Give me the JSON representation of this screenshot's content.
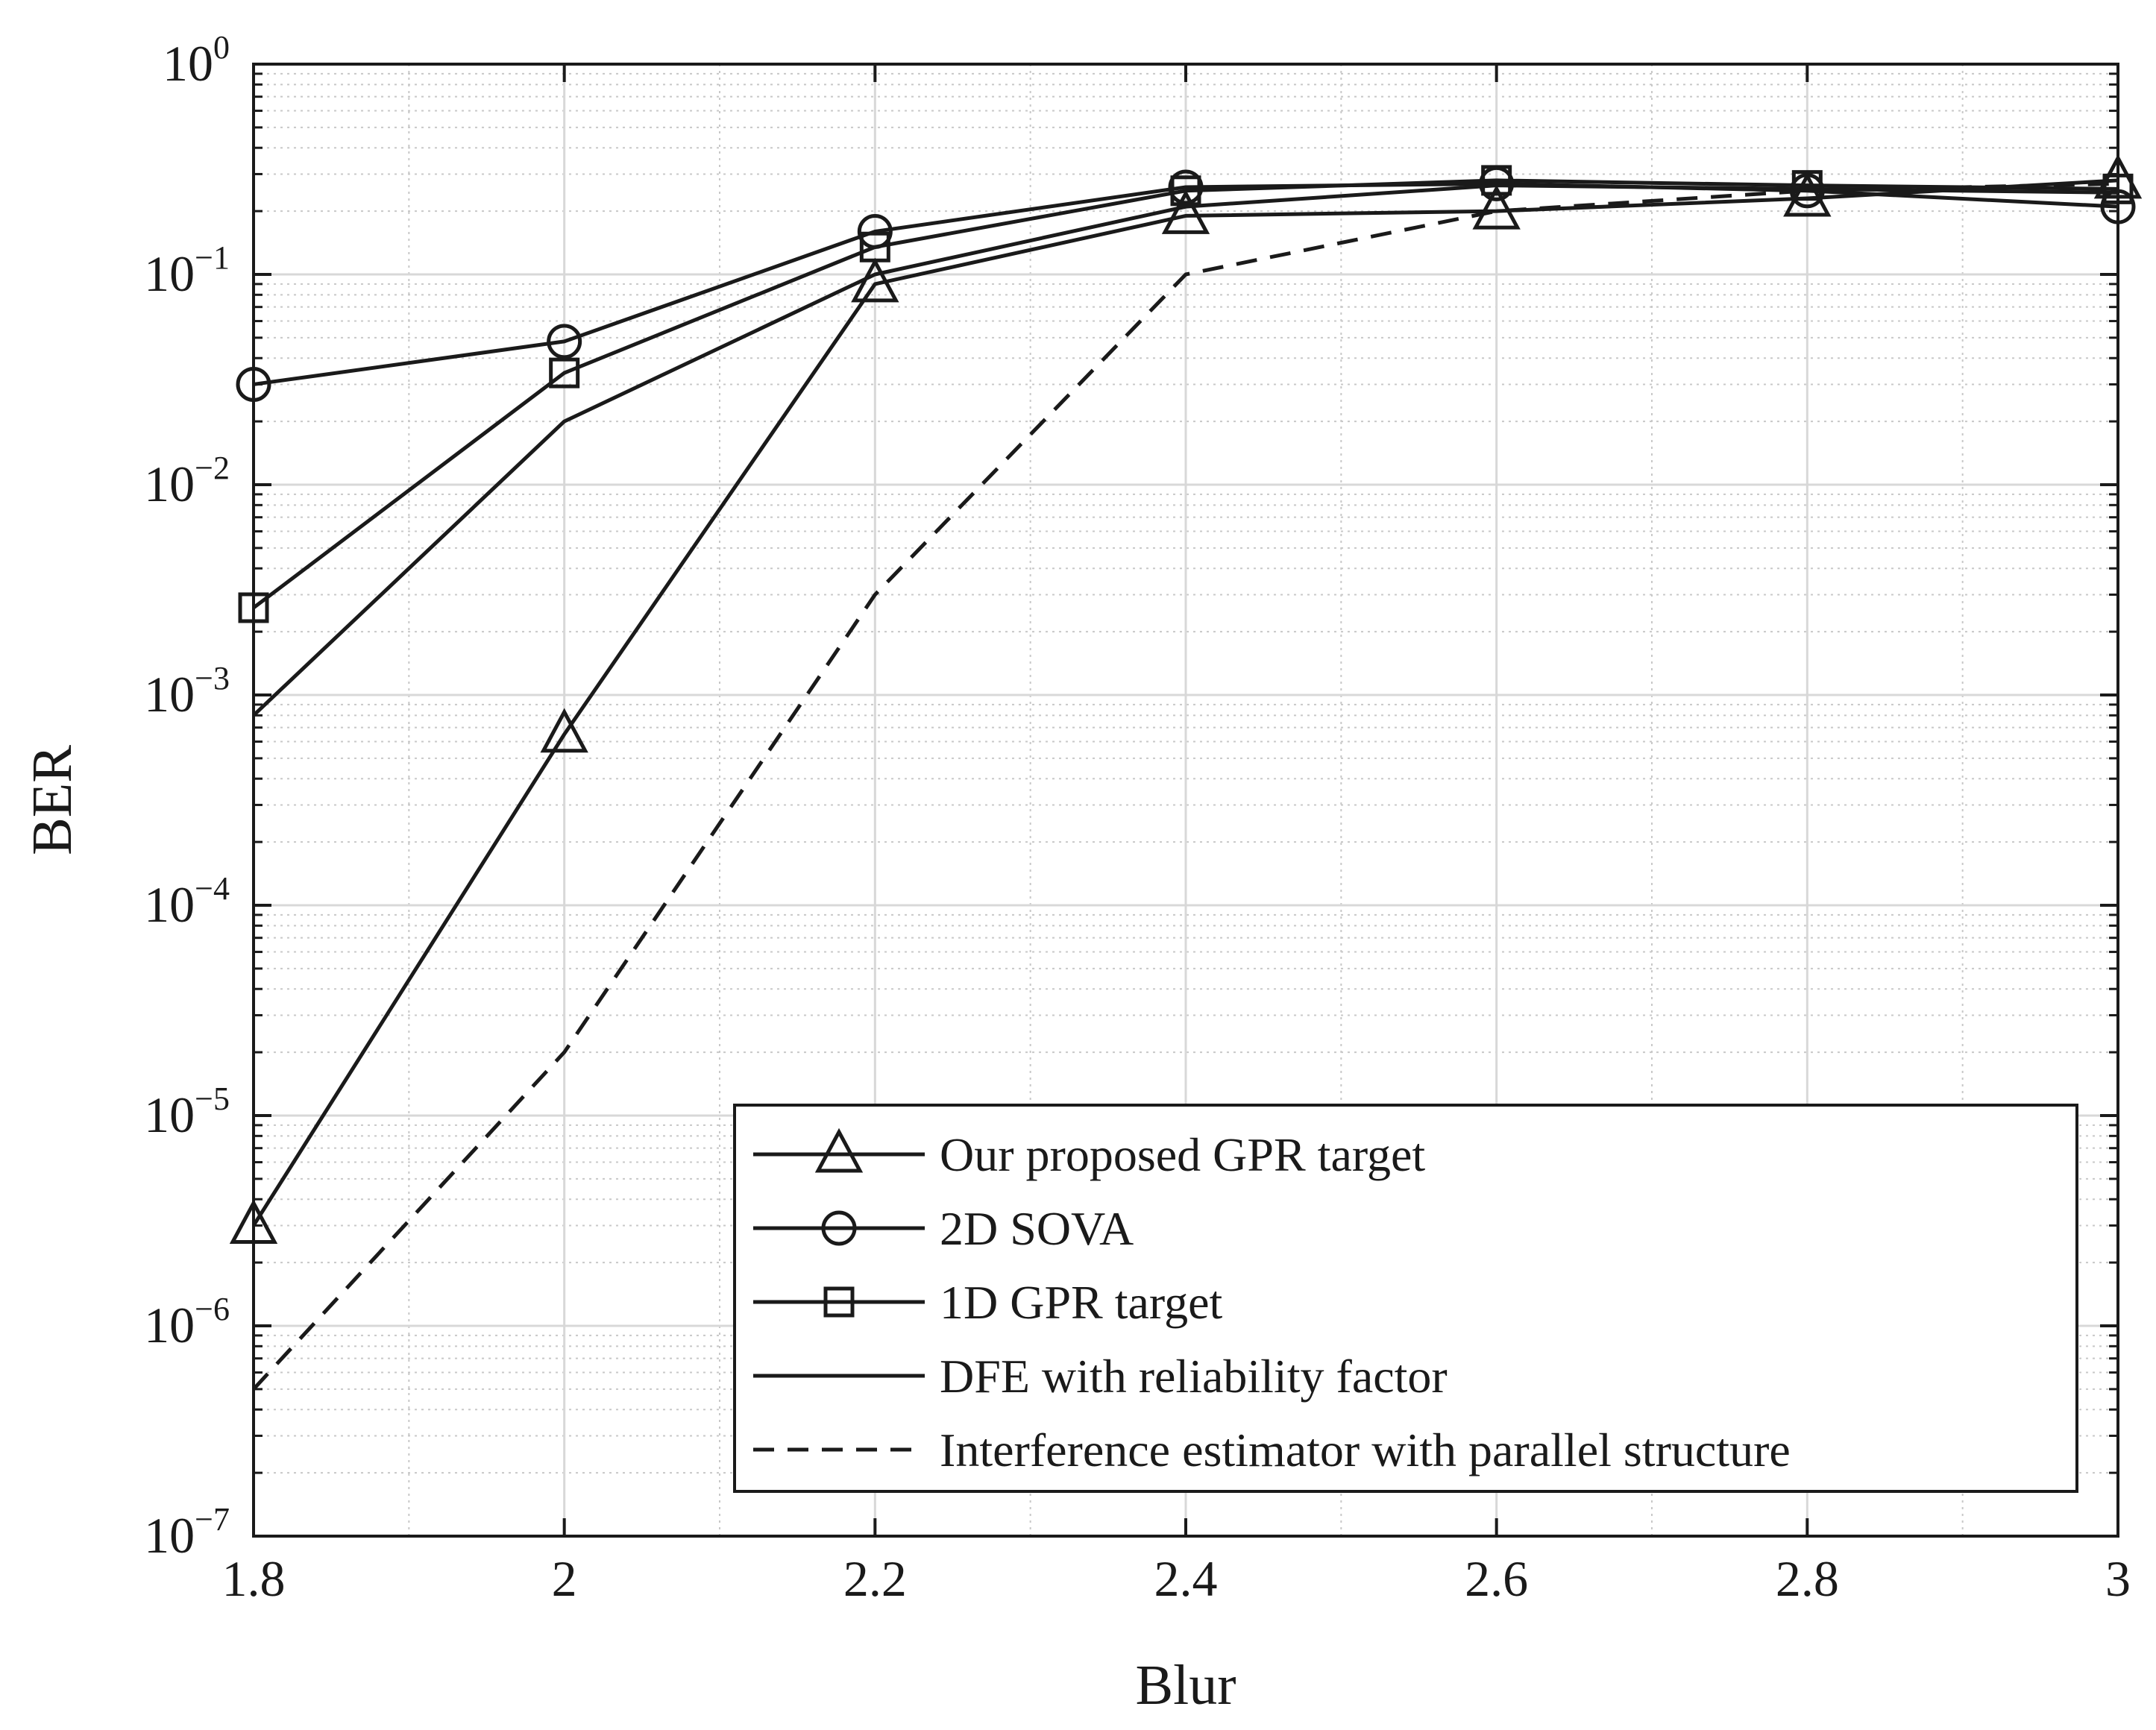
{
  "chart_data": {
    "type": "line",
    "xlabel": "Blur",
    "ylabel": "BER",
    "yscale": "log",
    "xlim": [
      1.8,
      3.0
    ],
    "ylim_exponent": [
      -7,
      0
    ],
    "x_ticks": [
      {
        "value": 1.8,
        "label": "1.8"
      },
      {
        "value": 2.0,
        "label": "2"
      },
      {
        "value": 2.2,
        "label": "2.2"
      },
      {
        "value": 2.4,
        "label": "2.4"
      },
      {
        "value": 2.6,
        "label": "2.6"
      },
      {
        "value": 2.8,
        "label": "2.8"
      },
      {
        "value": 3.0,
        "label": "3"
      }
    ],
    "y_ticks": [
      {
        "exp": 0,
        "base": "10",
        "sup": "0"
      },
      {
        "exp": -1,
        "base": "10",
        "sup": "−1"
      },
      {
        "exp": -2,
        "base": "10",
        "sup": "−2"
      },
      {
        "exp": -3,
        "base": "10",
        "sup": "−3"
      },
      {
        "exp": -4,
        "base": "10",
        "sup": "−4"
      },
      {
        "exp": -5,
        "base": "10",
        "sup": "−5"
      },
      {
        "exp": -6,
        "base": "10",
        "sup": "−6"
      },
      {
        "exp": -7,
        "base": "10",
        "sup": "−7"
      }
    ],
    "grid": true,
    "minor_grid": true,
    "legend_position": "bottom-right",
    "series": [
      {
        "name": "Our proposed GPR target",
        "marker": "triangle",
        "dash": "solid",
        "x": [
          1.8,
          2.0,
          2.2,
          2.4,
          2.6,
          2.8,
          3.0
        ],
        "y": [
          3e-06,
          0.00065,
          0.09,
          0.19,
          0.2,
          0.23,
          0.28
        ]
      },
      {
        "name": "2D SOVA",
        "marker": "circle",
        "dash": "solid",
        "x": [
          1.8,
          2.0,
          2.2,
          2.4,
          2.6,
          2.8,
          3.0
        ],
        "y": [
          0.03,
          0.048,
          0.16,
          0.26,
          0.27,
          0.25,
          0.21
        ]
      },
      {
        "name": "1D GPR target",
        "marker": "square",
        "dash": "solid",
        "x": [
          1.8,
          2.0,
          2.2,
          2.4,
          2.6,
          2.8,
          3.0
        ],
        "y": [
          0.0026,
          0.034,
          0.135,
          0.25,
          0.28,
          0.265,
          0.255
        ]
      },
      {
        "name": "DFE with reliability factor",
        "marker": "none",
        "dash": "solid",
        "x": [
          1.8,
          2.0,
          2.2,
          2.4,
          2.6,
          2.8,
          3.0
        ],
        "y": [
          0.0008,
          0.02,
          0.1,
          0.21,
          0.265,
          0.255,
          0.245
        ]
      },
      {
        "name": "Interference estimator with parallel structure",
        "marker": "none",
        "dash": "dashed",
        "x": [
          1.8,
          2.0,
          2.2,
          2.4,
          2.6,
          2.8,
          3.0
        ],
        "y": [
          5e-07,
          2e-05,
          0.003,
          0.1,
          0.2,
          0.25,
          0.27
        ]
      }
    ]
  }
}
